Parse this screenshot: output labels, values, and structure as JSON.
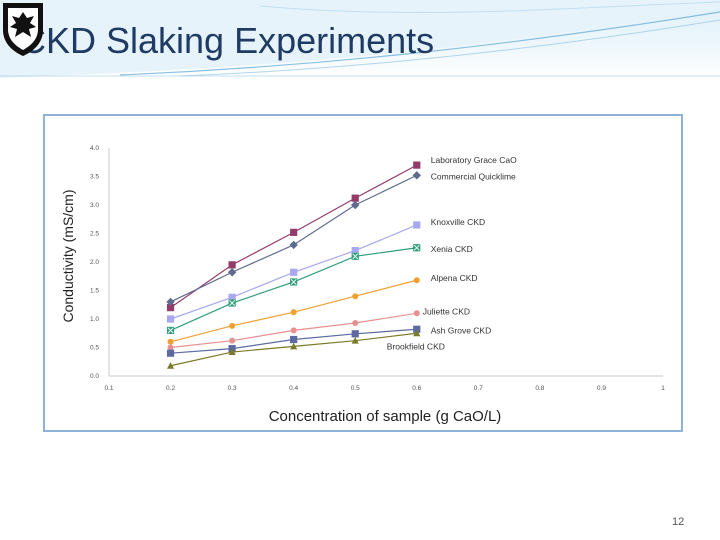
{
  "slide": {
    "title": "CKD Slaking Experiments",
    "page_number": "12"
  },
  "colors": {
    "title": "#1f3b63",
    "frame_border": "#8fb2d6",
    "header_swoosh": "#5aa6d6"
  },
  "icons": {
    "logo": "shield-crest-icon"
  },
  "chart_data": {
    "type": "line",
    "title": "",
    "xlabel": "Concentration of sample (g CaO/L)",
    "ylabel": "Conductivity (mS/cm)",
    "xlim": [
      0.1,
      1.0
    ],
    "ylim": [
      0.0,
      4.0
    ],
    "x_ticks": [
      "0.1",
      "0.2",
      "0.3",
      "0.4",
      "0.5",
      "0.6",
      "0.7",
      "0.8",
      "0.9",
      "1"
    ],
    "y_ticks": [
      "0.0",
      "0.5",
      "1.0",
      "1.5",
      "2.0",
      "2.5",
      "3.0",
      "3.5",
      "4.0"
    ],
    "grid": false,
    "legend": "labels at line ends",
    "x": [
      0.2,
      0.3,
      0.4,
      0.5,
      0.6
    ],
    "series": [
      {
        "name": "Laboratory Grace CaO",
        "color": "#943b6a",
        "marker": "square",
        "values": [
          1.2,
          1.95,
          2.52,
          3.12,
          3.7
        ]
      },
      {
        "name": "Commercial Quicklime",
        "color": "#5e6b8f",
        "marker": "diamond",
        "values": [
          1.3,
          1.82,
          2.3,
          3.0,
          3.52
        ]
      },
      {
        "name": "Knoxville CKD",
        "color": "#a8a8f0",
        "marker": "square",
        "values": [
          1.0,
          1.38,
          1.82,
          2.2,
          2.65
        ]
      },
      {
        "name": "Xenia CKD",
        "color": "#2f9e78",
        "marker": "x-square",
        "values": [
          0.8,
          1.28,
          1.65,
          2.1,
          2.25
        ]
      },
      {
        "name": "Alpena CKD",
        "color": "#f0a030",
        "marker": "circle",
        "values": [
          0.6,
          0.88,
          1.12,
          1.4,
          1.68
        ]
      },
      {
        "name": "Juliette CKD",
        "color": "#e89090",
        "marker": "circle",
        "values": [
          0.5,
          0.62,
          0.8,
          0.93,
          1.1
        ]
      },
      {
        "name": "Ash Grove CKD",
        "color": "#5c6aa0",
        "marker": "square",
        "values": [
          0.4,
          0.48,
          0.64,
          0.74,
          0.82
        ]
      },
      {
        "name": "Brookfield CKD",
        "color": "#7a7a2a",
        "marker": "triangle",
        "values": [
          0.18,
          0.42,
          0.52,
          0.62,
          0.75
        ]
      }
    ]
  }
}
